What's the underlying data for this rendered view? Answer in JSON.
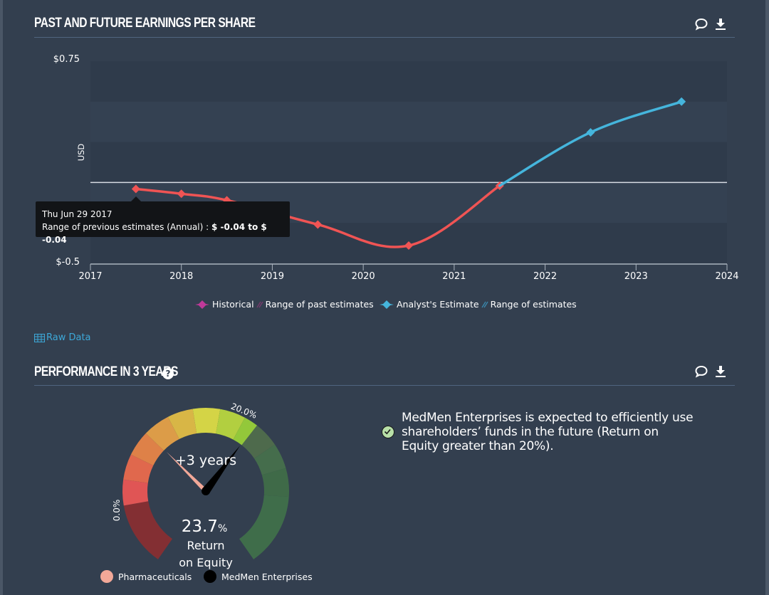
{
  "eps_section": {
    "title": "PAST AND FUTURE EARNINGS PER SHARE",
    "icons": [
      "comment-icon",
      "download-icon"
    ],
    "raw_data_label": "Raw Data",
    "tooltip": {
      "date": "Thu Jun 29 2017",
      "label": "Range of previous estimates (Annual) :",
      "value": "$ -0.04 to $ -0.04"
    }
  },
  "chart_data": {
    "type": "line",
    "title": "PAST AND FUTURE EARNINGS PER SHARE",
    "xlabel": "",
    "ylabel": "USD",
    "xlim": [
      2017,
      2024
    ],
    "ylim": [
      -0.5,
      0.75
    ],
    "y_tick_labels": [
      "$0.75",
      "$-0.5"
    ],
    "x_ticks": [
      2017,
      2018,
      2019,
      2020,
      2021,
      2022,
      2023,
      2024
    ],
    "x_tick_labels": [
      "2017",
      "2018",
      "2019",
      "2020",
      "2021",
      "2022",
      "2023",
      "2024"
    ],
    "grid": "horizontal bands",
    "zero_line": 0,
    "series": [
      {
        "name": "Historical",
        "color": "#f05454",
        "legend_color": "#c0399a",
        "x": [
          2017.5,
          2018.0,
          2018.5,
          2019.5,
          2020.5,
          2021.5
        ],
        "values": [
          -0.04,
          -0.07,
          -0.11,
          -0.26,
          -0.39,
          -0.02
        ]
      },
      {
        "name": "Analyst's Estimate",
        "color": "#45b5dc",
        "legend_color": "#45b5dc",
        "x": [
          2021.5,
          2022.5,
          2023.5
        ],
        "values": [
          -0.02,
          0.31,
          0.5
        ]
      }
    ],
    "legend": [
      {
        "label": "Historical",
        "color": "#c0399a",
        "marker": "diamond"
      },
      {
        "label": "Range of past estimates",
        "color": "#7a3a6e",
        "marker": "hatch"
      },
      {
        "label": "Analyst's Estimate",
        "color": "#45b5dc",
        "marker": "diamond"
      },
      {
        "label": "Range of estimates",
        "color": "#3a8ab0",
        "marker": "hatch"
      }
    ],
    "legend_position": "bottom-center"
  },
  "performance_section": {
    "title": "PERFORMANCE IN 3 YEARS",
    "help_icon": "?",
    "gauge": {
      "center_label": "+3 years",
      "value_text": "23.7",
      "value_unit": "%",
      "metric_line1": "Return",
      "metric_line2": "on Equity",
      "tick_low": "0.0%",
      "tick_high": "20.0%",
      "company_value_pct": 23.7,
      "industry_needle_label": "Pharmaceuticals",
      "company_needle_label": "MedMen Enterprises",
      "industry_color": "#f2a898",
      "company_color": "#000000"
    },
    "legend": [
      {
        "label": "Pharmaceuticals",
        "color": "#f2a898"
      },
      {
        "label": "MedMen Enterprises",
        "color": "#000000"
      }
    ],
    "insight": "MedMen Enterprises is expected to efficiently use shareholders’ funds in the future (Return on Equity greater than 20%).",
    "insight_status": "pass"
  }
}
